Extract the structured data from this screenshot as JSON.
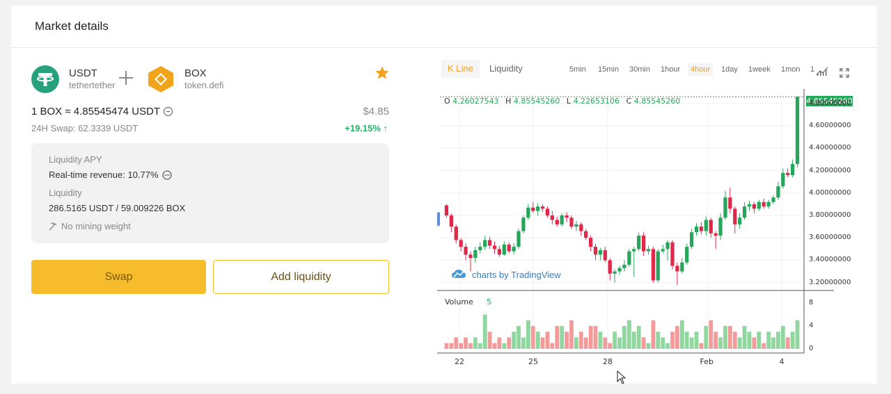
{
  "header": {
    "title": "Market details"
  },
  "pair": {
    "base": {
      "symbol": "USDT",
      "name": "tethertether"
    },
    "quote": {
      "symbol": "BOX",
      "name": "token.defi"
    }
  },
  "rate": {
    "text": "1 BOX ≈ 4.85545474 USDT",
    "usd_price": "$4.85"
  },
  "swap24h": {
    "text": "24H Swap:  62.3339 USDT",
    "change": "+19.15% ↑"
  },
  "info": {
    "apy_label": "Liquidity APY",
    "revenue": "Real-time revenue: 10.77%",
    "liquidity_label": "Liquidity",
    "liquidity_value": "286.5165 USDT / 59.009226 BOX",
    "mining": "No mining weight"
  },
  "buttons": {
    "swap": "Swap",
    "add_liquidity": "Add liquidity"
  },
  "chart_tabs": {
    "kline": "K Line",
    "liquidity": "Liquidity"
  },
  "timeframes": [
    "5min",
    "15min",
    "30min",
    "1hour",
    "4hour",
    "1day",
    "1week",
    "1mon",
    "1"
  ],
  "active_timeframe": "4hour",
  "ohlc": {
    "o_label": "O",
    "o": "4.26027543",
    "h_label": "H",
    "h": "4.85545260",
    "l_label": "L",
    "l": "4.22653106",
    "c_label": "C",
    "c": "4.85545260"
  },
  "last_price": "4.85545260",
  "watermark": "charts by TradingView",
  "volume": {
    "label": "Volume",
    "value": "5"
  },
  "colors": {
    "up": "#26a65b",
    "down": "#e0294a",
    "accent": "#f7bc2c"
  },
  "chart_data": {
    "type": "candlestick",
    "y_ticks": [
      "4.80000000",
      "4.60000000",
      "4.40000000",
      "4.20000000",
      "4.00000000",
      "3.80000000",
      "3.60000000",
      "3.40000000",
      "3.20000000"
    ],
    "ylim": [
      3.13,
      4.88
    ],
    "volume_ticks": [
      "8",
      "4",
      "0"
    ],
    "volume_lim": [
      0,
      9
    ],
    "x_ticks": [
      "22",
      "25",
      "28",
      "Feb",
      "4"
    ],
    "candles": [
      [
        3.89,
        3.8,
        3.9,
        3.78,
        1
      ],
      [
        3.8,
        3.7,
        3.82,
        3.65,
        1
      ],
      [
        3.7,
        3.58,
        3.72,
        3.55,
        2
      ],
      [
        3.58,
        3.52,
        3.6,
        3.48,
        1
      ],
      [
        3.52,
        3.45,
        3.55,
        3.4,
        2
      ],
      [
        3.45,
        3.42,
        3.48,
        3.3,
        1
      ],
      [
        3.42,
        3.49,
        3.52,
        3.38,
        2
      ],
      [
        3.49,
        3.52,
        3.56,
        3.46,
        1
      ],
      [
        3.52,
        3.58,
        3.62,
        3.49,
        6
      ],
      [
        3.58,
        3.53,
        3.61,
        3.5,
        3
      ],
      [
        3.53,
        3.5,
        3.57,
        3.46,
        1
      ],
      [
        3.5,
        3.45,
        3.53,
        3.43,
        2
      ],
      [
        3.45,
        3.54,
        3.57,
        3.44,
        1
      ],
      [
        3.54,
        3.48,
        3.56,
        3.46,
        2
      ],
      [
        3.48,
        3.52,
        3.55,
        3.45,
        3
      ],
      [
        3.52,
        3.66,
        3.68,
        3.5,
        4
      ],
      [
        3.66,
        3.78,
        3.8,
        3.64,
        2
      ],
      [
        3.78,
        3.87,
        3.9,
        3.76,
        5
      ],
      [
        3.87,
        3.84,
        3.92,
        3.82,
        4
      ],
      [
        3.84,
        3.88,
        3.91,
        3.8,
        3
      ],
      [
        3.88,
        3.86,
        3.9,
        3.83,
        2
      ],
      [
        3.86,
        3.8,
        3.88,
        3.78,
        3
      ],
      [
        3.8,
        3.76,
        3.84,
        3.72,
        1
      ],
      [
        3.76,
        3.72,
        3.79,
        3.7,
        4
      ],
      [
        3.72,
        3.8,
        3.82,
        3.7,
        4
      ],
      [
        3.8,
        3.78,
        3.83,
        3.74,
        3
      ],
      [
        3.78,
        3.7,
        3.8,
        3.68,
        5
      ],
      [
        3.7,
        3.72,
        3.75,
        3.66,
        2
      ],
      [
        3.72,
        3.66,
        3.74,
        3.62,
        3
      ],
      [
        3.66,
        3.6,
        3.68,
        3.58,
        2
      ],
      [
        3.6,
        3.52,
        3.62,
        3.48,
        4
      ],
      [
        3.52,
        3.45,
        3.55,
        3.4,
        4
      ],
      [
        3.45,
        3.49,
        3.51,
        3.4,
        3
      ],
      [
        3.49,
        3.4,
        3.52,
        3.38,
        2
      ],
      [
        3.4,
        3.28,
        3.42,
        3.22,
        1
      ],
      [
        3.28,
        3.3,
        3.32,
        3.2,
        3
      ],
      [
        3.3,
        3.33,
        3.35,
        3.27,
        2
      ],
      [
        3.33,
        3.36,
        3.4,
        3.3,
        4
      ],
      [
        3.36,
        3.48,
        3.5,
        3.34,
        5
      ],
      [
        3.48,
        3.5,
        3.52,
        3.25,
        3
      ],
      [
        3.5,
        3.62,
        3.65,
        3.48,
        4
      ],
      [
        3.62,
        3.48,
        3.65,
        3.44,
        2
      ],
      [
        3.48,
        3.5,
        3.53,
        3.45,
        1
      ],
      [
        3.5,
        3.22,
        3.52,
        3.2,
        5
      ],
      [
        3.22,
        3.48,
        3.5,
        3.2,
        3
      ],
      [
        3.48,
        3.5,
        3.54,
        3.46,
        2
      ],
      [
        3.5,
        3.56,
        3.58,
        3.4,
        1
      ],
      [
        3.56,
        3.35,
        3.58,
        3.32,
        3
      ],
      [
        3.35,
        3.3,
        3.38,
        3.18,
        4
      ],
      [
        3.3,
        3.38,
        3.42,
        3.28,
        5
      ],
      [
        3.38,
        3.52,
        3.55,
        3.36,
        3
      ],
      [
        3.52,
        3.65,
        3.68,
        3.5,
        2
      ],
      [
        3.65,
        3.7,
        3.73,
        3.62,
        3
      ],
      [
        3.7,
        3.66,
        3.74,
        3.63,
        1
      ],
      [
        3.66,
        3.76,
        3.79,
        3.62,
        4
      ],
      [
        3.76,
        3.64,
        3.78,
        3.6,
        5
      ],
      [
        3.64,
        3.62,
        3.66,
        3.5,
        3
      ],
      [
        3.62,
        3.78,
        3.82,
        3.58,
        2
      ],
      [
        3.78,
        3.96,
        4.02,
        3.76,
        4
      ],
      [
        3.96,
        3.86,
        4.05,
        3.82,
        4
      ],
      [
        3.86,
        3.72,
        3.88,
        3.64,
        3
      ],
      [
        3.72,
        3.78,
        3.82,
        3.68,
        2
      ],
      [
        3.78,
        3.88,
        3.92,
        3.76,
        4
      ],
      [
        3.88,
        3.9,
        3.93,
        3.84,
        3
      ],
      [
        3.9,
        3.86,
        3.92,
        3.82,
        2
      ],
      [
        3.86,
        3.92,
        3.94,
        3.84,
        3
      ],
      [
        3.92,
        3.88,
        3.95,
        3.86,
        1
      ],
      [
        3.88,
        3.92,
        3.94,
        3.86,
        3
      ],
      [
        3.92,
        3.96,
        3.98,
        3.9,
        2
      ],
      [
        3.96,
        4.06,
        4.1,
        3.94,
        3
      ],
      [
        4.06,
        4.18,
        4.22,
        4.04,
        4
      ],
      [
        4.18,
        4.16,
        4.22,
        4.14,
        2
      ],
      [
        4.16,
        4.26,
        4.3,
        4.14,
        3
      ],
      [
        4.26,
        4.86,
        4.86,
        4.23,
        5
      ]
    ]
  }
}
